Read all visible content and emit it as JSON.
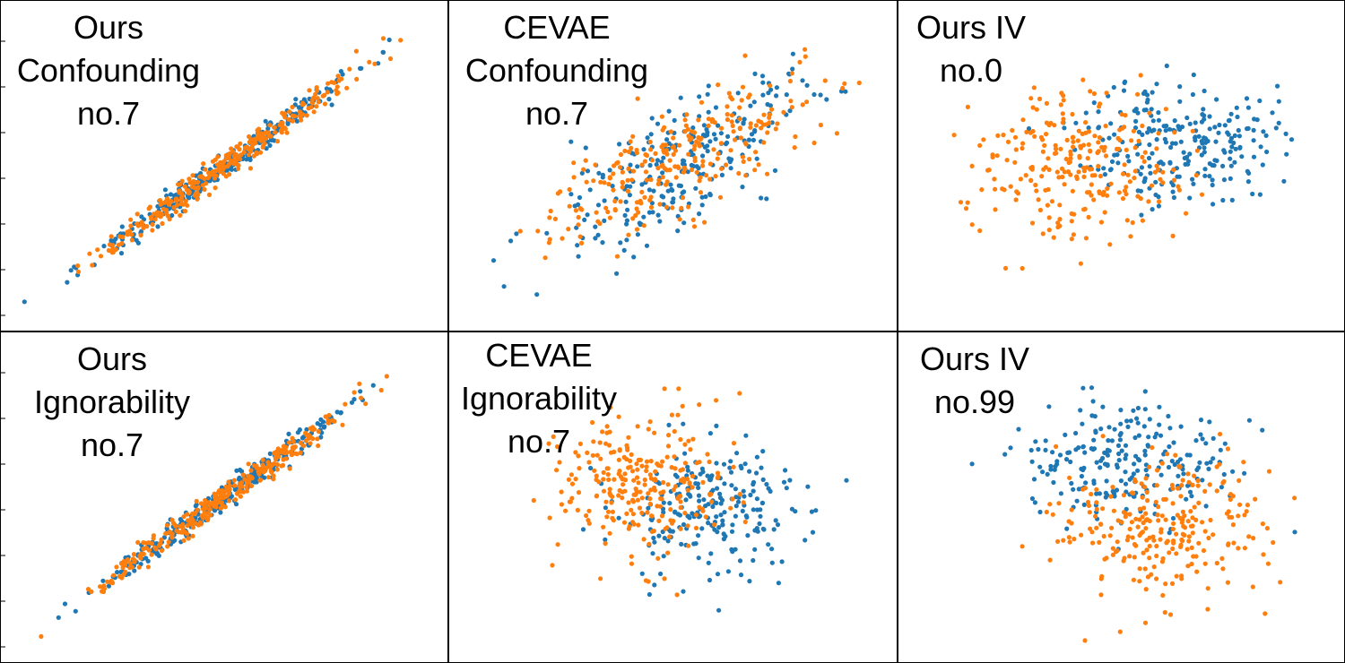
{
  "colors": {
    "series_a": "#1f77b4",
    "series_b": "#ff7f0e",
    "frame": "#000000",
    "background": "#ffffff"
  },
  "chart_data": [
    {
      "type": "scatter",
      "title_lines": [
        "Ours",
        "Confounding",
        "no.7"
      ],
      "seed": 11,
      "mode": "linear",
      "series": [
        {
          "name": "blue",
          "color": "#1f77b4",
          "count": 280,
          "ex": [
            -1,
            1
          ],
          "ey": [
            -1,
            1
          ]
        },
        {
          "name": "orange",
          "color": "#ff7f0e",
          "count": 300,
          "ex": [
            -1,
            1
          ],
          "ey": [
            -1,
            1
          ]
        }
      ]
    },
    {
      "type": "scatter",
      "title_lines": [
        "CEVAE",
        "Confounding",
        "no.7"
      ],
      "seed": 23,
      "mode": "correlated",
      "series": [
        {
          "name": "blue",
          "color": "#1f77b4",
          "count": 250,
          "ex": [
            -1,
            1
          ],
          "ey": [
            -1,
            1
          ]
        },
        {
          "name": "orange",
          "color": "#ff7f0e",
          "count": 260,
          "ex": [
            -1,
            1
          ],
          "ey": [
            -1,
            1
          ]
        }
      ]
    },
    {
      "type": "scatter",
      "title_lines": [
        "Ours IV",
        "no.0"
      ],
      "seed": 37,
      "mode": "clusters",
      "series": [
        {
          "name": "blue",
          "color": "#1f77b4",
          "count": 240,
          "ex": [
            0.7,
            0.3
          ],
          "ey": [
            0.5,
            -0.2
          ]
        },
        {
          "name": "orange",
          "color": "#ff7f0e",
          "count": 250,
          "ex": [
            -0.5,
            0.6
          ],
          "ey": [
            0.1,
            0.8
          ]
        }
      ]
    },
    {
      "type": "scatter",
      "title_lines": [
        "Ours",
        "Ignorability",
        "no.7"
      ],
      "seed": 41,
      "mode": "linear",
      "series": [
        {
          "name": "blue",
          "color": "#1f77b4",
          "count": 280,
          "ex": [
            -1,
            1
          ],
          "ey": [
            -1,
            1
          ]
        },
        {
          "name": "orange",
          "color": "#ff7f0e",
          "count": 300,
          "ex": [
            -1,
            1
          ],
          "ey": [
            -1,
            1
          ]
        }
      ]
    },
    {
      "type": "scatter",
      "title_lines": [
        "CEVAE",
        "Ignorability",
        "no.7"
      ],
      "seed": 53,
      "mode": "clusters",
      "series": [
        {
          "name": "blue",
          "color": "#1f77b4",
          "count": 230,
          "ex": [
            0.5,
            0.35
          ],
          "ey": [
            -0.3,
            0.6
          ]
        },
        {
          "name": "orange",
          "color": "#ff7f0e",
          "count": 260,
          "ex": [
            -0.3,
            0.4
          ],
          "ey": [
            0.2,
            0.7
          ]
        }
      ]
    },
    {
      "type": "scatter",
      "title_lines": [
        "Ours IV",
        "no.99"
      ],
      "seed": 67,
      "mode": "clusters",
      "series": [
        {
          "name": "blue",
          "color": "#1f77b4",
          "count": 230,
          "ex": [
            0.0,
            0.5
          ],
          "ey": [
            0.6,
            0.1
          ]
        },
        {
          "name": "orange",
          "color": "#ff7f0e",
          "count": 260,
          "ex": [
            0.5,
            0.5
          ],
          "ey": [
            -0.6,
            0.5
          ]
        }
      ]
    }
  ]
}
